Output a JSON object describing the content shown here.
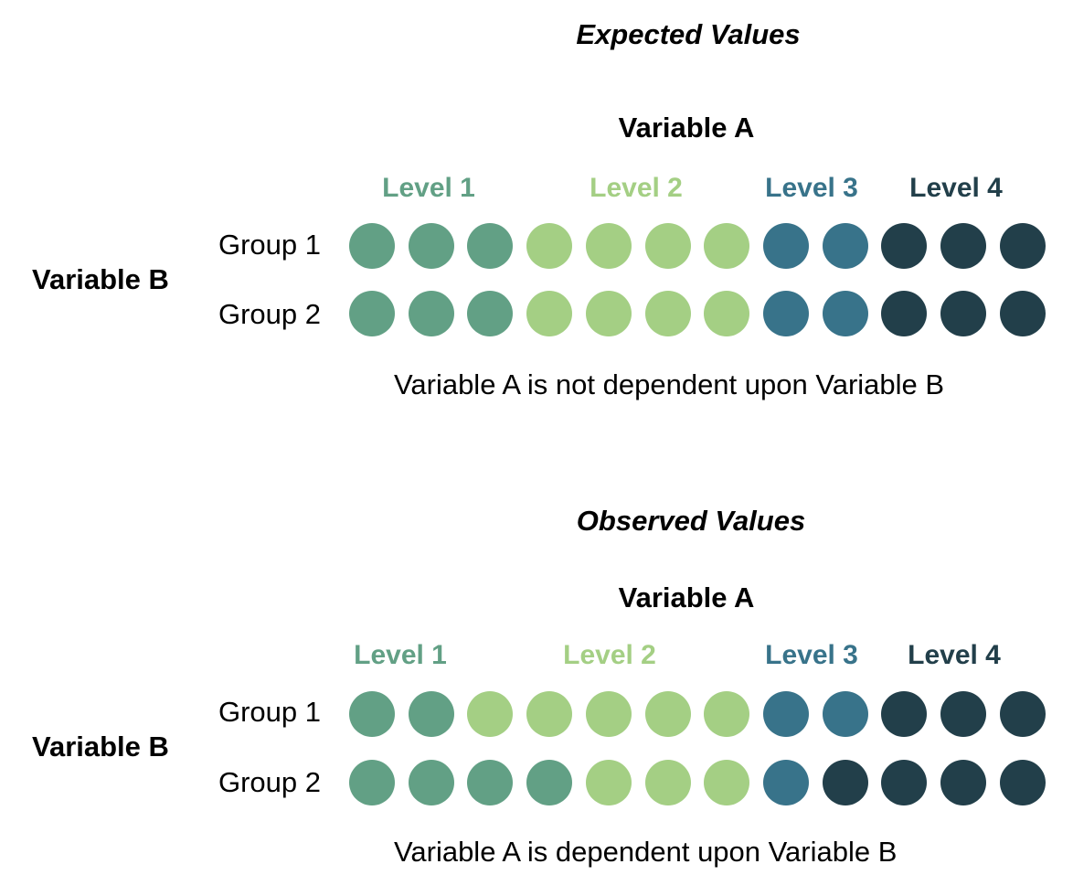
{
  "palette": {
    "level_1": "#62a085",
    "level_2": "#a4cf84",
    "level_3": "#38738a",
    "level_4": "#223f4a"
  },
  "panels": [
    {
      "title": "Expected Values",
      "variable_a": "Variable A",
      "variable_b": "Variable B",
      "levels": [
        "Level 1",
        "Level 2",
        "Level 3",
        "Level 4"
      ],
      "groups": [
        {
          "label": "Group 1",
          "dots": [
            1,
            1,
            1,
            2,
            2,
            2,
            2,
            3,
            3,
            4,
            4,
            4
          ]
        },
        {
          "label": "Group 2",
          "dots": [
            1,
            1,
            1,
            2,
            2,
            2,
            2,
            3,
            3,
            4,
            4,
            4
          ]
        }
      ],
      "caption": "Variable A is not dependent upon Variable B"
    },
    {
      "title": "Observed Values",
      "variable_a": "Variable A",
      "variable_b": "Variable B",
      "levels": [
        "Level 1",
        "Level 2",
        "Level 3",
        "Level 4"
      ],
      "groups": [
        {
          "label": "Group 1",
          "dots": [
            1,
            1,
            2,
            2,
            2,
            2,
            2,
            3,
            3,
            4,
            4,
            4
          ]
        },
        {
          "label": "Group 2",
          "dots": [
            1,
            1,
            1,
            1,
            2,
            2,
            2,
            3,
            4,
            4,
            4,
            4
          ]
        }
      ],
      "caption": "Variable A is dependent upon Variable B"
    }
  ]
}
